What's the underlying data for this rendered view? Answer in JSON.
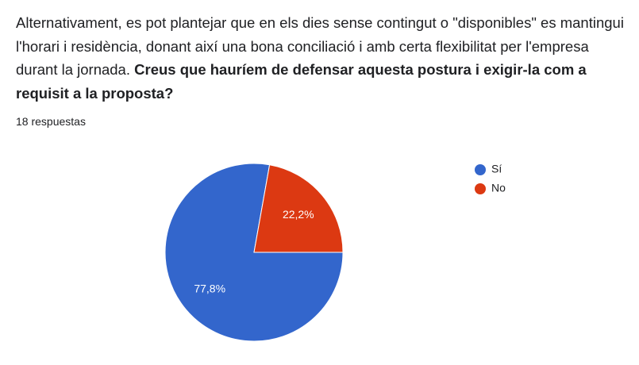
{
  "chart_data": {
    "type": "pie",
    "title": "Alternativament, es pot plantejar que en els dies sense contingut o \"disponibles\" es mantingui l'horari i residència, donant així una bona conciliació i amb certa flexibilitat per l'empresa durant la jornada.",
    "question": "Creus que hauríem de defensar aquesta postura i exigir-la com a requisit a la proposta?",
    "subtitle": "18 respuestas",
    "categories": [
      "Sí",
      "No"
    ],
    "values": [
      77.8,
      22.2
    ],
    "value_labels": [
      "77,8%",
      "22,2%"
    ],
    "colors": [
      "#3366cc",
      "#dc3912"
    ]
  }
}
